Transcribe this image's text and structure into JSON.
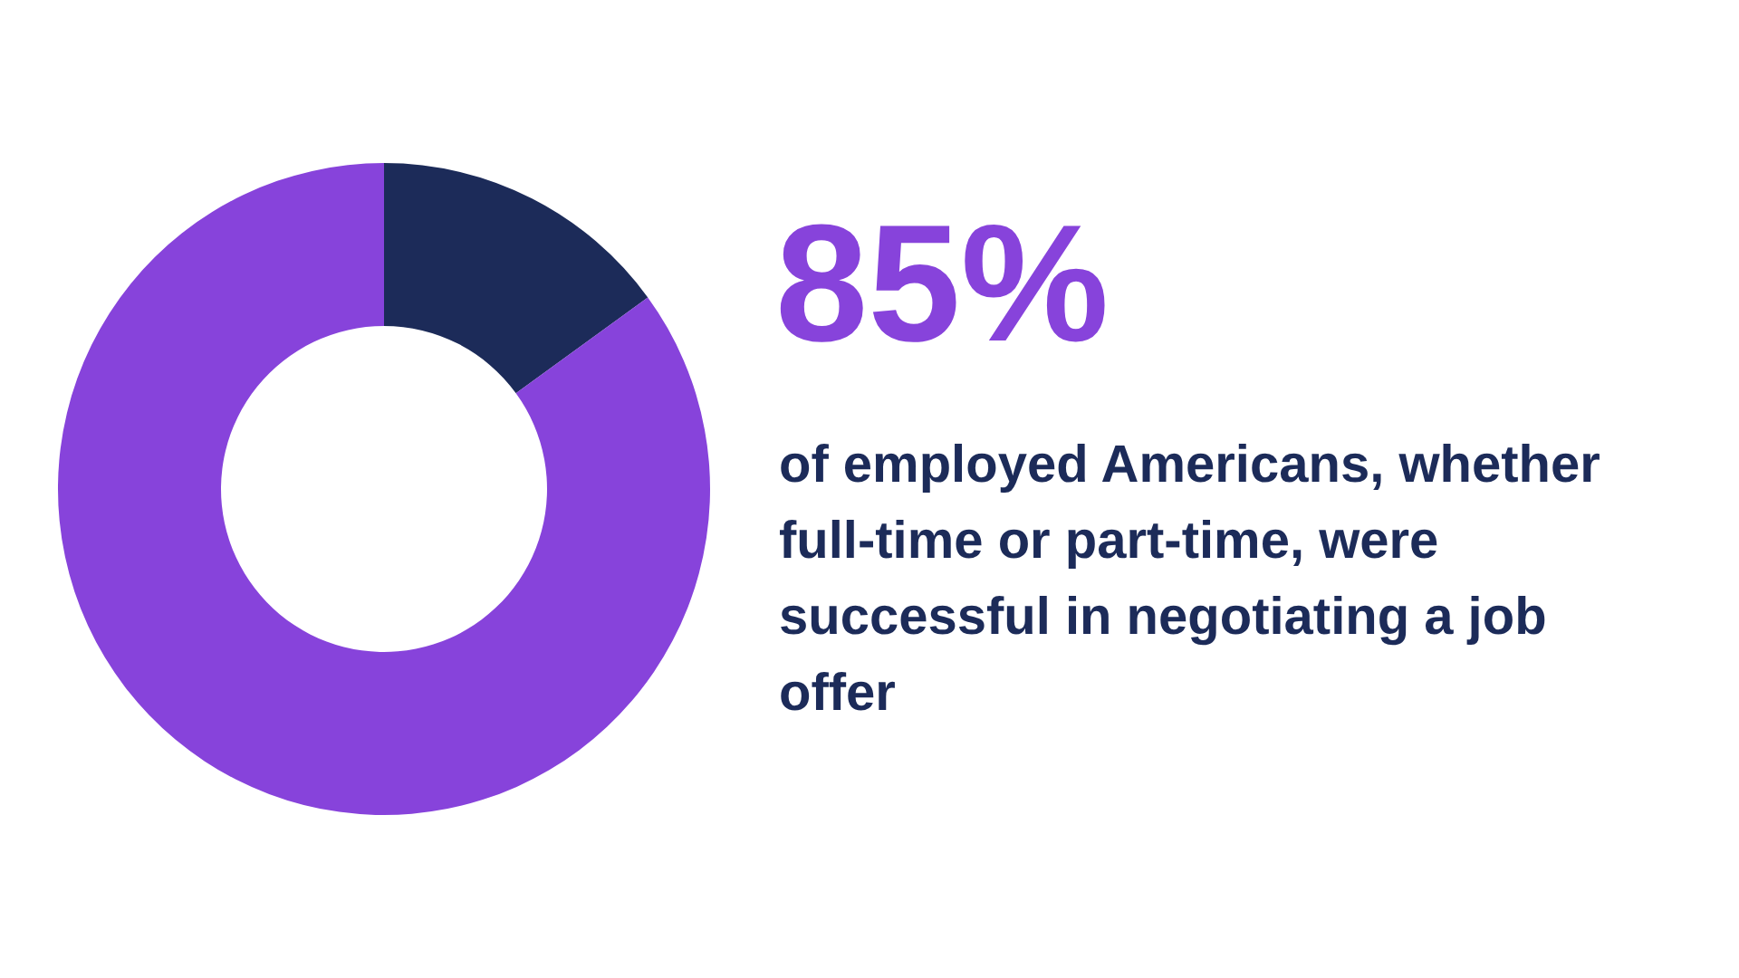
{
  "chart_data": {
    "type": "donut",
    "title": "85%",
    "subtitle": "of employed Americans, whether full-time or part-time, were successful in negotiating a job offer",
    "categories": [
      null,
      null
    ],
    "values": [
      15,
      85
    ],
    "colors": [
      "#1c2b59",
      "#8743db"
    ],
    "legend": false
  }
}
